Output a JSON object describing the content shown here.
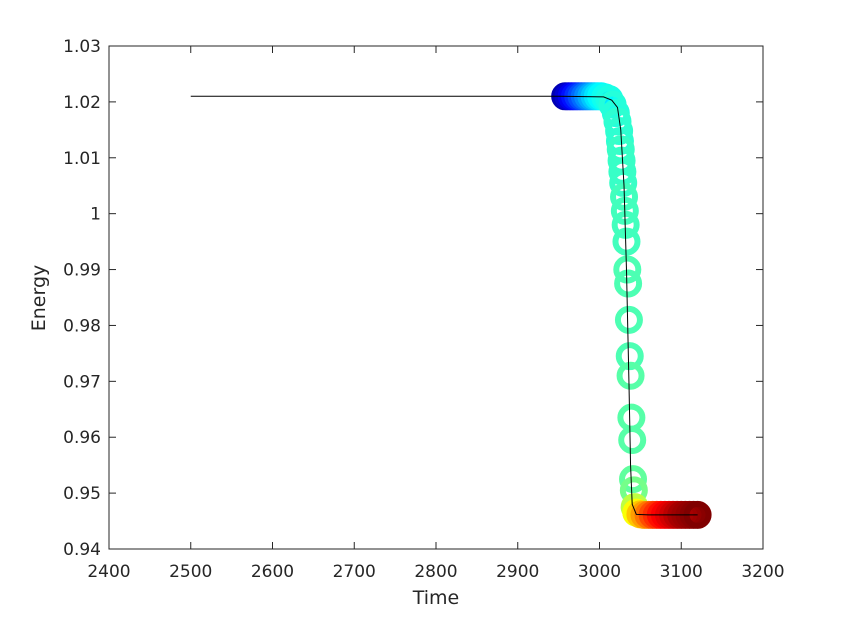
{
  "chart_data": {
    "type": "scatter",
    "title": "",
    "xlabel": "Time",
    "ylabel": "Energy",
    "xlim": [
      2400,
      3200
    ],
    "ylim": [
      0.94,
      1.03
    ],
    "xticks": [
      2400,
      2500,
      2600,
      2700,
      2800,
      2900,
      3000,
      3100,
      3200
    ],
    "xtick_labels": [
      "2400",
      "2500",
      "2600",
      "2700",
      "2800",
      "2900",
      "3000",
      "3100",
      "3200"
    ],
    "yticks": [
      0.94,
      0.95,
      0.96,
      0.97,
      0.98,
      0.99,
      1.0,
      1.01,
      1.02,
      1.03
    ],
    "ytick_labels": [
      "0.94",
      "0.95",
      "0.96",
      "0.97",
      "0.98",
      "0.99",
      "1",
      "1.01",
      "1.02",
      "1.03"
    ],
    "grid": false,
    "legend": "none",
    "colormap": "jet",
    "series": [
      {
        "type": "line",
        "color": "#000000",
        "points": [
          [
            2500,
            1.021
          ],
          [
            2950,
            1.021
          ],
          [
            3005,
            1.0209
          ],
          [
            3015,
            1.0203
          ],
          [
            3022,
            1.019
          ],
          [
            3026,
            1.015
          ],
          [
            3030,
            1.005
          ],
          [
            3033,
            0.99
          ],
          [
            3036,
            0.97
          ],
          [
            3038,
            0.955
          ],
          [
            3040,
            0.948
          ],
          [
            3045,
            0.9462
          ],
          [
            3060,
            0.9461
          ],
          [
            3120,
            0.9461
          ]
        ]
      },
      {
        "type": "scatter",
        "marker": "open-circle",
        "points": [
          [
            2958,
            1.021,
            0.05
          ],
          [
            2962,
            1.021,
            0.08
          ],
          [
            2966,
            1.021,
            0.11
          ],
          [
            2970,
            1.021,
            0.14
          ],
          [
            2974,
            1.021,
            0.17
          ],
          [
            2978,
            1.021,
            0.2
          ],
          [
            2982,
            1.021,
            0.23
          ],
          [
            2986,
            1.021,
            0.26
          ],
          [
            2990,
            1.021,
            0.29
          ],
          [
            2994,
            1.021,
            0.32
          ],
          [
            2998,
            1.021,
            0.35
          ],
          [
            3002,
            1.021,
            0.37
          ],
          [
            3007,
            1.0208,
            0.39
          ],
          [
            3012,
            1.0205,
            0.4
          ],
          [
            3016,
            1.0195,
            0.41
          ],
          [
            3020,
            1.018,
            0.41
          ],
          [
            3022,
            1.0165,
            0.42
          ],
          [
            3024,
            1.0148,
            0.42
          ],
          [
            3025,
            1.013,
            0.42
          ],
          [
            3026,
            1.0115,
            0.43
          ],
          [
            3027,
            1.0095,
            0.43
          ],
          [
            3028,
            1.0075,
            0.43
          ],
          [
            3029,
            1.0055,
            0.43
          ],
          [
            3030,
            1.003,
            0.44
          ],
          [
            3031,
            1.0005,
            0.44
          ],
          [
            3032,
            0.998,
            0.44
          ],
          [
            3033,
            0.995,
            0.44
          ],
          [
            3034,
            0.99,
            0.45
          ],
          [
            3035,
            0.9875,
            0.45
          ],
          [
            3036,
            0.981,
            0.45
          ],
          [
            3037,
            0.9745,
            0.45
          ],
          [
            3038,
            0.971,
            0.46
          ],
          [
            3039,
            0.9635,
            0.46
          ],
          [
            3040,
            0.9595,
            0.46
          ],
          [
            3041,
            0.9525,
            0.47
          ],
          [
            3042,
            0.9505,
            0.49
          ],
          [
            3043,
            0.9475,
            0.56
          ],
          [
            3045,
            0.9465,
            0.62
          ],
          [
            3050,
            0.9462,
            0.68
          ],
          [
            3055,
            0.9461,
            0.72
          ],
          [
            3060,
            0.9461,
            0.76
          ],
          [
            3065,
            0.9461,
            0.8
          ],
          [
            3070,
            0.9461,
            0.83
          ],
          [
            3075,
            0.9461,
            0.86
          ],
          [
            3080,
            0.9461,
            0.88
          ],
          [
            3085,
            0.9461,
            0.9
          ],
          [
            3090,
            0.9461,
            0.92
          ],
          [
            3095,
            0.9461,
            0.94
          ],
          [
            3100,
            0.9461,
            0.96
          ],
          [
            3105,
            0.9461,
            0.97
          ],
          [
            3110,
            0.9461,
            0.98
          ],
          [
            3115,
            0.9461,
            0.99
          ],
          [
            3120,
            0.9461,
            1.0
          ]
        ]
      }
    ]
  }
}
